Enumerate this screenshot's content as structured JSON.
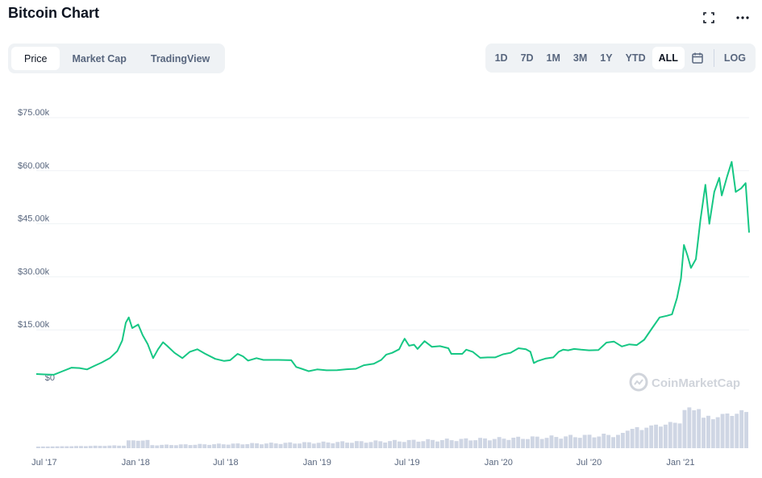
{
  "header": {
    "title": "Bitcoin Chart",
    "expand_icon": "expand-icon",
    "more_icon": "more-icon"
  },
  "tabs": [
    {
      "label": "Price",
      "active": true
    },
    {
      "label": "Market Cap",
      "active": false
    },
    {
      "label": "TradingView",
      "active": false
    }
  ],
  "ranges": [
    {
      "label": "1D",
      "active": false
    },
    {
      "label": "7D",
      "active": false
    },
    {
      "label": "1M",
      "active": false
    },
    {
      "label": "3M",
      "active": false
    },
    {
      "label": "1Y",
      "active": false
    },
    {
      "label": "YTD",
      "active": false
    },
    {
      "label": "ALL",
      "active": true
    }
  ],
  "calendar_icon": "calendar-icon",
  "log_label": "LOG",
  "watermark": {
    "text": "CoinMarketCap",
    "icon": "coinmarketcap-logo-icon"
  },
  "colors": {
    "line": "#16c784",
    "volume": "#cfd6e4",
    "grid": "#eff2f5",
    "text": "#58667e",
    "watermark": "#d0d4db"
  },
  "chart_data": {
    "type": "line",
    "title": "",
    "ylabel": "",
    "xlabel": "",
    "ylim": [
      0,
      75000
    ],
    "y_ticks": [
      {
        "value": 0,
        "label": "$0"
      },
      {
        "value": 15000,
        "label": "$15.00k"
      },
      {
        "value": 30000,
        "label": "$30.00k"
      },
      {
        "value": 45000,
        "label": "$45.00k"
      },
      {
        "value": 60000,
        "label": "$60.00k"
      },
      {
        "value": 75000,
        "label": "$75.00k"
      }
    ],
    "x_ticks": [
      {
        "value": "2017-07-01",
        "label": "Jul '17"
      },
      {
        "value": "2018-01-01",
        "label": "Jan '18"
      },
      {
        "value": "2018-07-01",
        "label": "Jul '18"
      },
      {
        "value": "2019-01-01",
        "label": "Jan '19"
      },
      {
        "value": "2019-07-01",
        "label": "Jul '19"
      },
      {
        "value": "2020-01-01",
        "label": "Jan '20"
      },
      {
        "value": "2020-07-01",
        "label": "Jul '20"
      },
      {
        "value": "2021-01-01",
        "label": "Jan '21"
      }
    ],
    "grid": true,
    "legend": "none",
    "series": [
      {
        "values": [
          [
            "2017-06-15",
            2500
          ],
          [
            "2017-07-01",
            2400
          ],
          [
            "2017-07-20",
            2300
          ],
          [
            "2017-08-05",
            3200
          ],
          [
            "2017-08-25",
            4300
          ],
          [
            "2017-09-10",
            4200
          ],
          [
            "2017-09-25",
            3800
          ],
          [
            "2017-10-10",
            4800
          ],
          [
            "2017-10-25",
            5800
          ],
          [
            "2017-11-10",
            7000
          ],
          [
            "2017-11-25",
            9000
          ],
          [
            "2017-12-05",
            12000
          ],
          [
            "2017-12-12",
            17000
          ],
          [
            "2017-12-18",
            18500
          ],
          [
            "2017-12-25",
            15500
          ],
          [
            "2018-01-06",
            16500
          ],
          [
            "2018-01-15",
            13500
          ],
          [
            "2018-01-25",
            11000
          ],
          [
            "2018-02-05",
            7000
          ],
          [
            "2018-02-15",
            9500
          ],
          [
            "2018-02-25",
            11500
          ],
          [
            "2018-03-05",
            10500
          ],
          [
            "2018-03-20",
            8500
          ],
          [
            "2018-04-05",
            7000
          ],
          [
            "2018-04-20",
            8800
          ],
          [
            "2018-05-05",
            9500
          ],
          [
            "2018-05-20",
            8300
          ],
          [
            "2018-06-10",
            6800
          ],
          [
            "2018-06-28",
            6200
          ],
          [
            "2018-07-10",
            6400
          ],
          [
            "2018-07-25",
            8200
          ],
          [
            "2018-08-05",
            7500
          ],
          [
            "2018-08-15",
            6300
          ],
          [
            "2018-09-01",
            7000
          ],
          [
            "2018-09-15",
            6500
          ],
          [
            "2018-10-15",
            6500
          ],
          [
            "2018-11-10",
            6400
          ],
          [
            "2018-11-20",
            4500
          ],
          [
            "2018-12-01",
            4000
          ],
          [
            "2018-12-15",
            3300
          ],
          [
            "2019-01-01",
            3800
          ],
          [
            "2019-01-20",
            3550
          ],
          [
            "2019-02-10",
            3600
          ],
          [
            "2019-03-01",
            3850
          ],
          [
            "2019-03-20",
            4000
          ],
          [
            "2019-04-05",
            5000
          ],
          [
            "2019-04-25",
            5400
          ],
          [
            "2019-05-10",
            6500
          ],
          [
            "2019-05-20",
            8000
          ],
          [
            "2019-06-01",
            8500
          ],
          [
            "2019-06-15",
            9500
          ],
          [
            "2019-06-22",
            11500
          ],
          [
            "2019-06-26",
            12500
          ],
          [
            "2019-07-05",
            10500
          ],
          [
            "2019-07-15",
            10800
          ],
          [
            "2019-07-22",
            9600
          ],
          [
            "2019-08-05",
            11800
          ],
          [
            "2019-08-20",
            10200
          ],
          [
            "2019-09-05",
            10400
          ],
          [
            "2019-09-22",
            9800
          ],
          [
            "2019-09-28",
            8200
          ],
          [
            "2019-10-20",
            8200
          ],
          [
            "2019-10-28",
            9400
          ],
          [
            "2019-11-10",
            8800
          ],
          [
            "2019-11-25",
            7100
          ],
          [
            "2019-12-10",
            7200
          ],
          [
            "2019-12-25",
            7200
          ],
          [
            "2020-01-10",
            8100
          ],
          [
            "2020-01-25",
            8500
          ],
          [
            "2020-02-10",
            9800
          ],
          [
            "2020-02-25",
            9500
          ],
          [
            "2020-03-05",
            8800
          ],
          [
            "2020-03-12",
            5600
          ],
          [
            "2020-03-20",
            6200
          ],
          [
            "2020-04-05",
            6900
          ],
          [
            "2020-04-20",
            7200
          ],
          [
            "2020-05-01",
            8800
          ],
          [
            "2020-05-10",
            9400
          ],
          [
            "2020-05-20",
            9200
          ],
          [
            "2020-06-01",
            9600
          ],
          [
            "2020-06-15",
            9400
          ],
          [
            "2020-07-01",
            9200
          ],
          [
            "2020-07-20",
            9300
          ],
          [
            "2020-08-05",
            11400
          ],
          [
            "2020-08-20",
            11700
          ],
          [
            "2020-09-05",
            10300
          ],
          [
            "2020-09-20",
            10900
          ],
          [
            "2020-10-05",
            10700
          ],
          [
            "2020-10-20",
            12200
          ],
          [
            "2020-11-05",
            15500
          ],
          [
            "2020-11-20",
            18500
          ],
          [
            "2020-12-05",
            19000
          ],
          [
            "2020-12-15",
            19400
          ],
          [
            "2020-12-25",
            24000
          ],
          [
            "2021-01-02",
            29500
          ],
          [
            "2021-01-08",
            39000
          ],
          [
            "2021-01-15",
            36000
          ],
          [
            "2021-01-22",
            32500
          ],
          [
            "2021-02-01",
            35000
          ],
          [
            "2021-02-10",
            46000
          ],
          [
            "2021-02-20",
            56000
          ],
          [
            "2021-02-28",
            45000
          ],
          [
            "2021-03-10",
            54000
          ],
          [
            "2021-03-20",
            58000
          ],
          [
            "2021-03-25",
            53000
          ],
          [
            "2021-04-05",
            58500
          ],
          [
            "2021-04-14",
            62500
          ],
          [
            "2021-04-22",
            54000
          ],
          [
            "2021-05-03",
            55000
          ],
          [
            "2021-05-12",
            56500
          ],
          [
            "2021-05-19",
            42500
          ]
        ]
      }
    ]
  }
}
